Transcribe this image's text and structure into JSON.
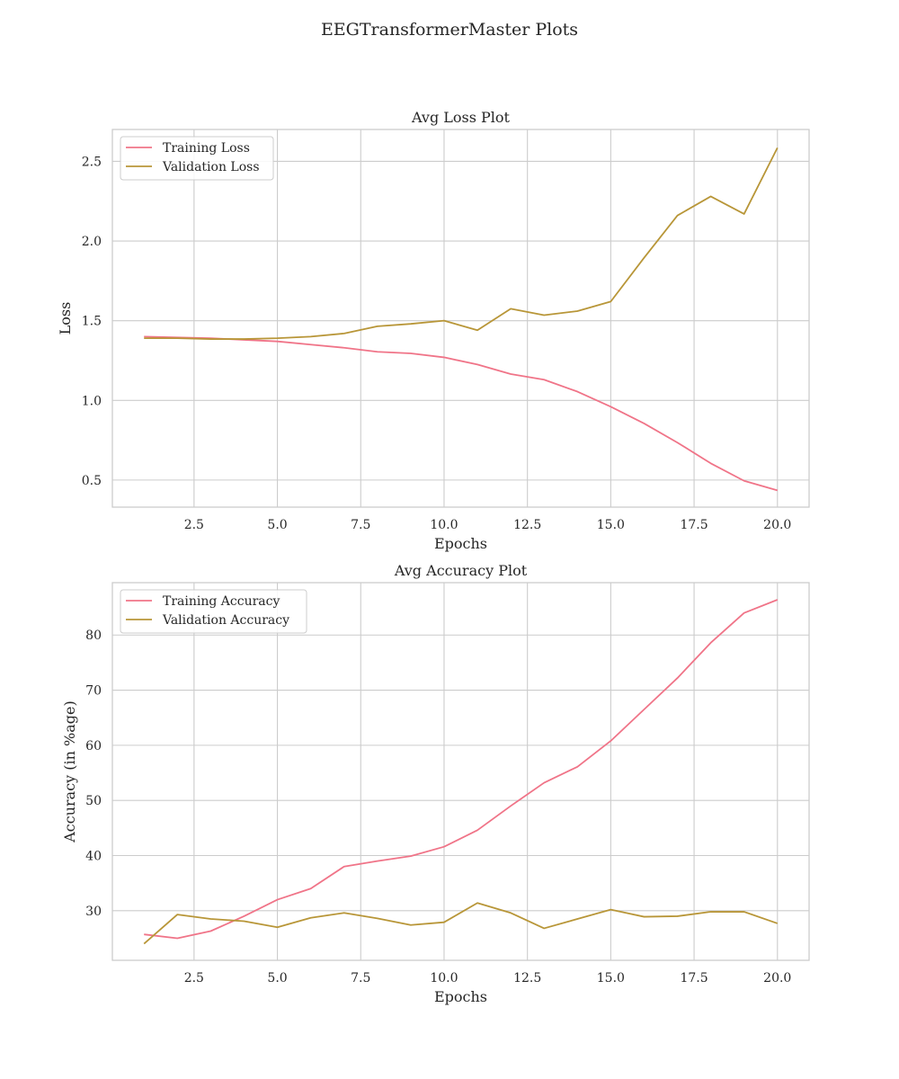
{
  "figure": {
    "title": "EEGTransformerMaster Plots"
  },
  "chart_data": [
    {
      "type": "line",
      "title": "Avg Loss Plot",
      "xlabel": "Epochs",
      "ylabel": "Loss",
      "xlim": [
        0.05,
        20.95
      ],
      "ylim": [
        0.33,
        2.7
      ],
      "xticks": [
        2.5,
        5.0,
        7.5,
        10.0,
        12.5,
        15.0,
        17.5,
        20.0
      ],
      "yticks": [
        0.5,
        1.0,
        1.5,
        2.0,
        2.5
      ],
      "grid": true,
      "legend": "top-left",
      "x": [
        1,
        2,
        3,
        4,
        5,
        6,
        7,
        8,
        9,
        10,
        11,
        12,
        13,
        14,
        15,
        16,
        17,
        18,
        19,
        20
      ],
      "series": [
        {
          "name": "Training Loss",
          "color": "#f07488",
          "values": [
            1.4,
            1.395,
            1.39,
            1.38,
            1.37,
            1.35,
            1.33,
            1.305,
            1.295,
            1.27,
            1.225,
            1.165,
            1.13,
            1.055,
            0.96,
            0.855,
            0.735,
            0.605,
            0.495,
            0.435
          ]
        },
        {
          "name": "Validation Loss",
          "color": "#b89638",
          "values": [
            1.39,
            1.39,
            1.385,
            1.385,
            1.39,
            1.4,
            1.42,
            1.465,
            1.48,
            1.5,
            1.44,
            1.575,
            1.535,
            1.56,
            1.62,
            1.895,
            2.16,
            2.28,
            2.17,
            2.585
          ]
        }
      ]
    },
    {
      "type": "line",
      "title": "Avg Accuracy Plot",
      "xlabel": "Epochs",
      "ylabel": "Accuracy (in %age)",
      "xlim": [
        0.05,
        20.95
      ],
      "ylim": [
        21.0,
        89.5
      ],
      "xticks": [
        2.5,
        5.0,
        7.5,
        10.0,
        12.5,
        15.0,
        17.5,
        20.0
      ],
      "yticks": [
        30,
        40,
        50,
        60,
        70,
        80
      ],
      "grid": true,
      "legend": "top-left",
      "x": [
        1,
        2,
        3,
        4,
        5,
        6,
        7,
        8,
        9,
        10,
        11,
        12,
        13,
        14,
        15,
        16,
        17,
        18,
        19,
        20
      ],
      "series": [
        {
          "name": "Training Accuracy",
          "color": "#f07488",
          "values": [
            25.7,
            25.0,
            26.3,
            29.0,
            32.0,
            34.0,
            38.0,
            39.0,
            39.9,
            41.6,
            44.6,
            49.0,
            53.2,
            56.1,
            60.8,
            66.5,
            72.2,
            78.6,
            84.0,
            86.4
          ]
        },
        {
          "name": "Validation Accuracy",
          "color": "#b89638",
          "values": [
            24.0,
            29.3,
            28.5,
            28.1,
            27.0,
            28.7,
            29.6,
            28.6,
            27.4,
            27.9,
            31.4,
            29.6,
            26.8,
            28.5,
            30.2,
            28.9,
            29.0,
            29.8,
            29.8,
            27.7
          ]
        }
      ]
    }
  ]
}
